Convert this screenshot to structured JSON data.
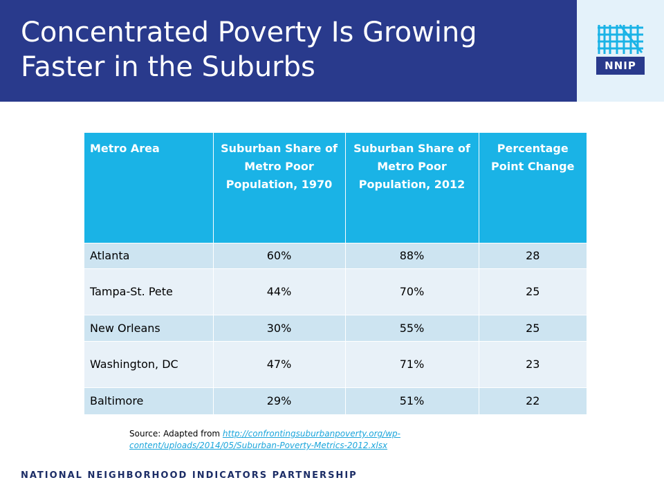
{
  "slide": {
    "title": "Concentrated Poverty Is Growing Faster in the Suburbs",
    "logo_text": "NNIP",
    "footer": "NATIONAL NEIGHBORHOOD INDICATORS PARTNERSHIP"
  },
  "colors": {
    "title_bar": "#293a8c",
    "header_fill": "#1ab3e6",
    "row_dark": "#cde4f1",
    "row_light": "#e8f1f8",
    "link": "#1aa5db"
  },
  "table": {
    "headers": [
      "Metro Area",
      "Suburban Share of Metro Poor Population, 1970",
      "Suburban Share of Metro Poor Population, 2012",
      "Percentage Point Change"
    ],
    "rows": [
      [
        "Atlanta",
        "60%",
        "88%",
        "28"
      ],
      [
        "Tampa-St. Pete",
        "44%",
        "70%",
        "25"
      ],
      [
        "New Orleans",
        "30%",
        "55%",
        "25"
      ],
      [
        "Washington, DC",
        "47%",
        "71%",
        "23"
      ],
      [
        "Baltimore",
        "29%",
        "51%",
        "22"
      ]
    ]
  },
  "source": {
    "prefix": "Source: Adapted from ",
    "link": "http://confrontingsuburbanpoverty.org/wp-content/uploads/2014/05/Suburban-Poverty-Metrics-2012.xlsx"
  }
}
